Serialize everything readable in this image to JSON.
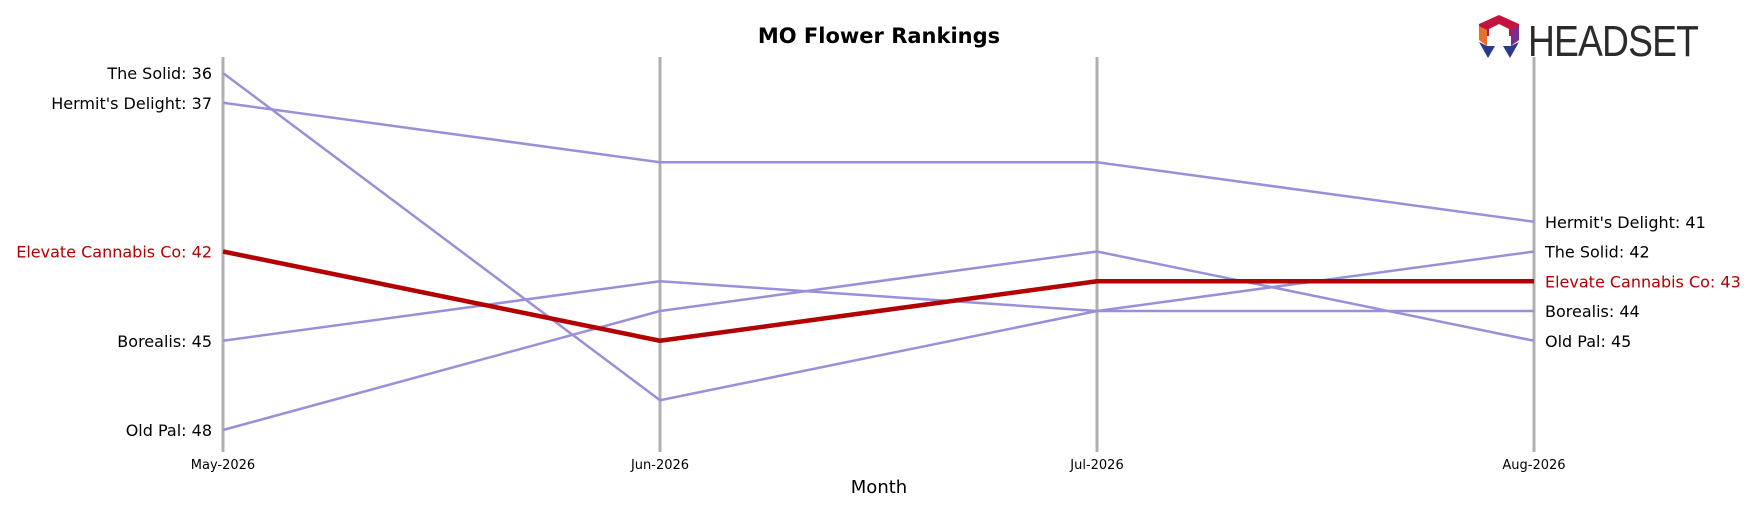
{
  "chart_data": {
    "type": "line",
    "title": "MO Flower Rankings",
    "xlabel": "Month",
    "ylabel": "",
    "x": [
      "May-2026",
      "Jun-2026",
      "Jul-2026",
      "Aug-2026"
    ],
    "y_inverted": true,
    "ylim": [
      35,
      48.5
    ],
    "grid": "vertical lines at each month",
    "series": [
      {
        "name": "The Solid",
        "values": [
          36,
          47,
          44,
          42
        ],
        "color": "#9b8fd9",
        "highlight": false
      },
      {
        "name": "Hermit's Delight",
        "values": [
          37,
          39,
          39,
          41
        ],
        "color": "#9b8fd9",
        "highlight": false
      },
      {
        "name": "Elevate Cannabis Co",
        "values": [
          42,
          45,
          43,
          43
        ],
        "color": "#b30000",
        "highlight": true
      },
      {
        "name": "Borealis",
        "values": [
          45,
          43,
          44,
          44
        ],
        "color": "#9b8fd9",
        "highlight": false
      },
      {
        "name": "Old Pal",
        "values": [
          48,
          44,
          42,
          45
        ],
        "color": "#9b8fd9",
        "highlight": false
      }
    ],
    "start_labels": [
      {
        "text": "The Solid: 36",
        "series": "The Solid"
      },
      {
        "text": "Hermit's Delight: 37",
        "series": "Hermit's Delight"
      },
      {
        "text": "Elevate Cannabis Co: 42",
        "series": "Elevate Cannabis Co"
      },
      {
        "text": "Borealis: 45",
        "series": "Borealis"
      },
      {
        "text": "Old Pal: 48",
        "series": "Old Pal"
      }
    ],
    "end_labels": [
      {
        "text": "Hermit's Delight: 41",
        "series": "Hermit's Delight"
      },
      {
        "text": "The Solid: 42",
        "series": "The Solid"
      },
      {
        "text": "Elevate Cannabis Co: 43",
        "series": "Elevate Cannabis Co"
      },
      {
        "text": "Borealis: 44",
        "series": "Borealis"
      },
      {
        "text": "Old Pal: 45",
        "series": "Old Pal"
      }
    ]
  },
  "logo": {
    "text": "HEADSET",
    "colors": [
      "#c4123f",
      "#e8702a",
      "#7b2d8e",
      "#2b3a8f"
    ]
  },
  "colors": {
    "gridline": "#b0b0b0",
    "highlight": "#b30000",
    "other": "#9b8fd9"
  }
}
